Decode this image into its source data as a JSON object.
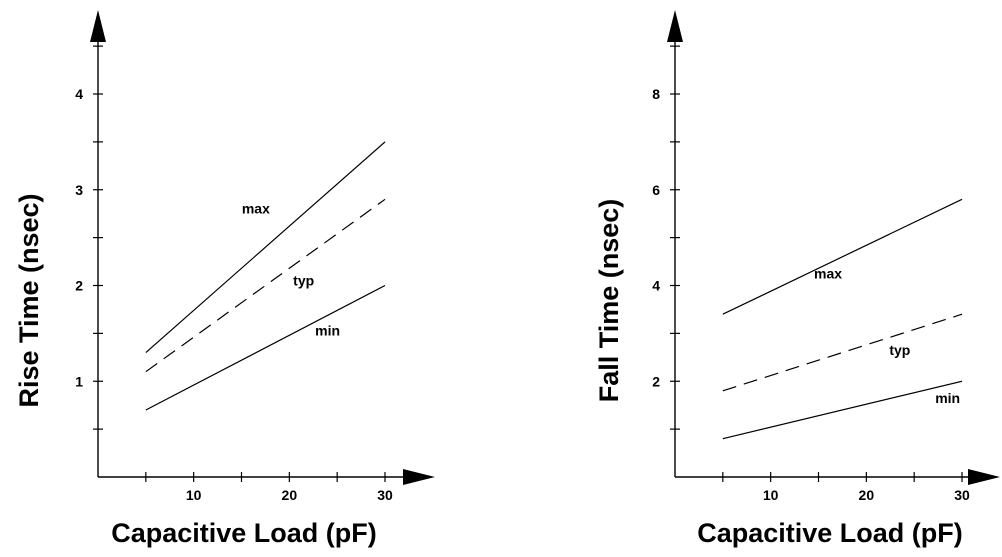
{
  "chart_data": [
    {
      "type": "line",
      "xlabel": "Capacitive Load (pF)",
      "ylabel": "Rise Time (nsec)",
      "xlim": [
        0,
        30
      ],
      "ylim": [
        0,
        4.4
      ],
      "x_ticks": [
        10,
        20,
        30
      ],
      "x_minor_ticks": [
        5,
        15,
        25
      ],
      "y_ticks": [
        1,
        2,
        3,
        4
      ],
      "y_minor_ticks": [
        0.5,
        1.5,
        2.5,
        3.5,
        4.5
      ],
      "series": [
        {
          "name": "max",
          "style": "solid",
          "x": [
            5,
            30
          ],
          "y": [
            1.3,
            3.5
          ],
          "label_at": [
            16.5,
            2.75
          ]
        },
        {
          "name": "typ",
          "style": "dashed",
          "x": [
            5,
            30
          ],
          "y": [
            1.1,
            2.9
          ],
          "label_at": [
            21.5,
            2.0
          ]
        },
        {
          "name": "min",
          "style": "solid",
          "x": [
            5,
            30
          ],
          "y": [
            0.7,
            2.0
          ],
          "label_at": [
            24,
            1.48
          ]
        }
      ]
    },
    {
      "type": "line",
      "xlabel": "Capacitive Load (pF)",
      "ylabel": "Fall Time (nsec)",
      "xlim": [
        0,
        30
      ],
      "ylim": [
        0,
        8.8
      ],
      "x_ticks": [
        10,
        20,
        30
      ],
      "x_minor_ticks": [
        5,
        15,
        25
      ],
      "y_ticks": [
        2,
        4,
        6,
        8
      ],
      "y_minor_ticks": [
        1,
        3,
        5,
        7,
        9
      ],
      "series": [
        {
          "name": "max",
          "style": "solid",
          "x": [
            5,
            30
          ],
          "y": [
            3.4,
            5.8
          ],
          "label_at": [
            16,
            4.15
          ]
        },
        {
          "name": "typ",
          "style": "dashed",
          "x": [
            5,
            30
          ],
          "y": [
            1.8,
            3.4
          ],
          "label_at": [
            23.5,
            2.55
          ]
        },
        {
          "name": "min",
          "style": "solid",
          "x": [
            5,
            30
          ],
          "y": [
            0.8,
            2.0
          ],
          "label_at": [
            28.5,
            1.55
          ]
        }
      ]
    }
  ]
}
